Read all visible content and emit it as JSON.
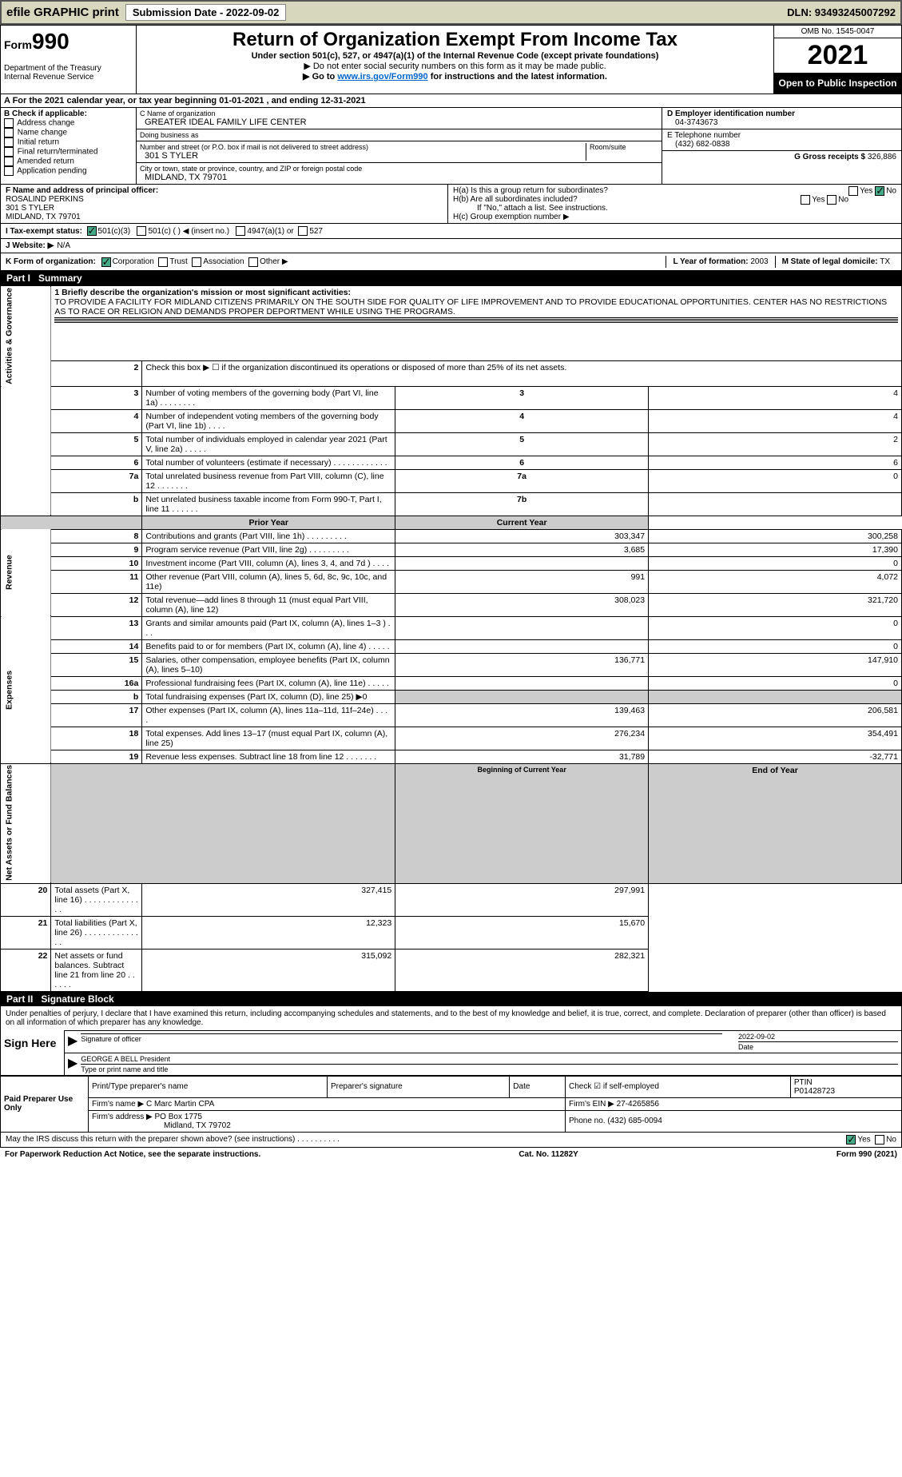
{
  "topbar": {
    "efile": "efile GRAPHIC print",
    "sub_btn": "Submission Date - 2022-09-02",
    "dln": "DLN: 93493245007292"
  },
  "header": {
    "form_small": "Form",
    "form_num": "990",
    "title": "Return of Organization Exempt From Income Tax",
    "subtitle": "Under section 501(c), 527, or 4947(a)(1) of the Internal Revenue Code (except private foundations)",
    "note1": "▶ Do not enter social security numbers on this form as it may be made public.",
    "goto_pre": "▶ Go to ",
    "goto_link": "www.irs.gov/Form990",
    "goto_post": " for instructions and the latest information.",
    "dept": "Department of the Treasury\nInternal Revenue Service",
    "omb": "OMB No. 1545-0047",
    "year": "2021",
    "open": "Open to Public Inspection"
  },
  "row_a": "A For the 2021 calendar year, or tax year beginning 01-01-2021    , and ending 12-31-2021",
  "sec_b": {
    "title": "B Check if applicable:",
    "opts": [
      "Address change",
      "Name change",
      "Initial return",
      "Final return/terminated",
      "Amended return",
      "Application pending"
    ]
  },
  "sec_c": {
    "name_lbl": "C Name of organization",
    "name": "GREATER IDEAL FAMILY LIFE CENTER",
    "dba_lbl": "Doing business as",
    "dba": "",
    "addr_lbl": "Number and street (or P.O. box if mail is not delivered to street address)",
    "room_lbl": "Room/suite",
    "addr": "301 S TYLER",
    "city_lbl": "City or town, state or province, country, and ZIP or foreign postal code",
    "city": "MIDLAND, TX  79701"
  },
  "sec_d": {
    "lbl": "D Employer identification number",
    "val": "04-3743673"
  },
  "sec_e": {
    "lbl": "E Telephone number",
    "val": "(432) 682-0838"
  },
  "sec_g": {
    "lbl": "G Gross receipts $",
    "val": "326,886"
  },
  "sec_f": {
    "lbl": "F Name and address of principal officer:",
    "name": "ROSALIND PERKINS",
    "addr1": "301 S TYLER",
    "addr2": "MIDLAND, TX  79701"
  },
  "sec_h": {
    "ha": "H(a)  Is this a group return for subordinates?",
    "hb": "H(b)  Are all subordinates included?",
    "hb_note": "If \"No,\" attach a list. See instructions.",
    "hc": "H(c)  Group exemption number ▶",
    "yes": "Yes",
    "no": "No"
  },
  "sec_i": {
    "lbl": "I  Tax-exempt status:",
    "o1": "501(c)(3)",
    "o2": "501(c) (  ) ◀ (insert no.)",
    "o3": "4947(a)(1) or",
    "o4": "527"
  },
  "sec_j": {
    "lbl": "J  Website: ▶",
    "val": "N/A"
  },
  "sec_k": {
    "lbl": "K Form of organization:",
    "o1": "Corporation",
    "o2": "Trust",
    "o3": "Association",
    "o4": "Other ▶"
  },
  "sec_l": {
    "lbl": "L Year of formation:",
    "val": "2003"
  },
  "sec_m": {
    "lbl": "M State of legal domicile:",
    "val": "TX"
  },
  "part1": {
    "num": "Part I",
    "title": "Summary"
  },
  "p1": {
    "q1": "1  Briefly describe the organization's mission or most significant activities:",
    "q1_ans": "TO PROVIDE A FACILITY FOR MIDLAND CITIZENS PRIMARILY ON THE SOUTH SIDE FOR QUALITY OF LIFE IMPROVEMENT AND TO PROVIDE EDUCATIONAL OPPORTUNITIES. CENTER HAS NO RESTRICTIONS AS TO RACE OR RELIGION AND DEMANDS PROPER DEPORTMENT WHILE USING THE PROGRAMS.",
    "q2": "Check this box ▶ ☐ if the organization discontinued its operations or disposed of more than 25% of its net assets.",
    "rows_gov": [
      {
        "n": "3",
        "d": "Number of voting members of the governing body (Part VI, line 1a)   .    .    .    .    .    .    .    .",
        "k": "3",
        "v": "4"
      },
      {
        "n": "4",
        "d": "Number of independent voting members of the governing body (Part VI, line 1b)   .    .    .    .",
        "k": "4",
        "v": "4"
      },
      {
        "n": "5",
        "d": "Total number of individuals employed in calendar year 2021 (Part V, line 2a)   .    .    .    .    .",
        "k": "5",
        "v": "2"
      },
      {
        "n": "6",
        "d": "Total number of volunteers (estimate if necessary)   .    .    .    .    .    .    .    .    .    .    .    .",
        "k": "6",
        "v": "6"
      },
      {
        "n": "7a",
        "d": "Total unrelated business revenue from Part VIII, column (C), line 12   .    .    .    .    .    .    .",
        "k": "7a",
        "v": "0"
      },
      {
        "n": "b",
        "d": "Net unrelated business taxable income from Form 990-T, Part I, line 11   .    .    .    .    .    .",
        "k": "7b",
        "v": ""
      }
    ],
    "hdr_prior": "Prior Year",
    "hdr_curr": "Current Year",
    "rows_rev": [
      {
        "n": "8",
        "d": "Contributions and grants (Part VIII, line 1h)   .    .    .    .    .    .    .    .    .",
        "p": "303,347",
        "c": "300,258"
      },
      {
        "n": "9",
        "d": "Program service revenue (Part VIII, line 2g)   .    .    .    .    .    .    .    .    .",
        "p": "3,685",
        "c": "17,390"
      },
      {
        "n": "10",
        "d": "Investment income (Part VIII, column (A), lines 3, 4, and 7d )   .    .    .    .",
        "p": "",
        "c": "0"
      },
      {
        "n": "11",
        "d": "Other revenue (Part VIII, column (A), lines 5, 6d, 8c, 9c, 10c, and 11e)",
        "p": "991",
        "c": "4,072"
      },
      {
        "n": "12",
        "d": "Total revenue—add lines 8 through 11 (must equal Part VIII, column (A), line 12)",
        "p": "308,023",
        "c": "321,720"
      }
    ],
    "rows_exp": [
      {
        "n": "13",
        "d": "Grants and similar amounts paid (Part IX, column (A), lines 1–3 )   .    .    .",
        "p": "",
        "c": "0"
      },
      {
        "n": "14",
        "d": "Benefits paid to or for members (Part IX, column (A), line 4)   .    .    .    .    .",
        "p": "",
        "c": "0"
      },
      {
        "n": "15",
        "d": "Salaries, other compensation, employee benefits (Part IX, column (A), lines 5–10)",
        "p": "136,771",
        "c": "147,910"
      },
      {
        "n": "16a",
        "d": "Professional fundraising fees (Part IX, column (A), line 11e)   .    .    .    .    .",
        "p": "",
        "c": "0"
      },
      {
        "n": "b",
        "d": "Total fundraising expenses (Part IX, column (D), line 25) ▶0",
        "p": "__shade__",
        "c": "__shade__"
      },
      {
        "n": "17",
        "d": "Other expenses (Part IX, column (A), lines 11a–11d, 11f–24e)   .    .    .    .",
        "p": "139,463",
        "c": "206,581"
      },
      {
        "n": "18",
        "d": "Total expenses. Add lines 13–17 (must equal Part IX, column (A), line 25)",
        "p": "276,234",
        "c": "354,491"
      },
      {
        "n": "19",
        "d": "Revenue less expenses. Subtract line 18 from line 12   .    .    .    .    .    .    .",
        "p": "31,789",
        "c": "-32,771"
      }
    ],
    "hdr_beg": "Beginning of Current Year",
    "hdr_end": "End of Year",
    "rows_net": [
      {
        "n": "20",
        "d": "Total assets (Part X, line 16)   .    .    .    .    .    .    .    .    .    .    .    .    .    .",
        "p": "327,415",
        "c": "297,991"
      },
      {
        "n": "21",
        "d": "Total liabilities (Part X, line 26)   .    .    .    .    .    .    .    .    .    .    .    .    .    .",
        "p": "12,323",
        "c": "15,670"
      },
      {
        "n": "22",
        "d": "Net assets or fund balances. Subtract line 21 from line 20   .    .    .    .    .    .",
        "p": "315,092",
        "c": "282,321"
      }
    ],
    "vlabels": {
      "gov": "Activities & Governance",
      "rev": "Revenue",
      "exp": "Expenses",
      "net": "Net Assets or Fund Balances"
    }
  },
  "part2": {
    "num": "Part II",
    "title": "Signature Block"
  },
  "sig": {
    "decl": "Under penalties of perjury, I declare that I have examined this return, including accompanying schedules and statements, and to the best of my knowledge and belief, it is true, correct, and complete. Declaration of preparer (other than officer) is based on all information of which preparer has any knowledge.",
    "sign_here": "Sign Here",
    "sig_officer": "Signature of officer",
    "date": "Date",
    "date_val": "2022-09-02",
    "name_title": "GEORGE A BELL President",
    "name_title_lbl": "Type or print name and title"
  },
  "paid": {
    "lbl": "Paid Preparer Use Only",
    "h1": "Print/Type preparer's name",
    "h2": "Preparer's signature",
    "h3": "Date",
    "h4": "Check ☑ if self-employed",
    "h5_lbl": "PTIN",
    "h5": "P01428723",
    "firm_lbl": "Firm's name    ▶",
    "firm": "C Marc Martin CPA",
    "ein_lbl": "Firm's EIN ▶",
    "ein": "27-4265856",
    "addr_lbl": "Firm's address ▶",
    "addr1": "PO Box 1775",
    "addr2": "Midland, TX  79702",
    "phone_lbl": "Phone no.",
    "phone": "(432) 685-0094"
  },
  "footer": {
    "may": "May the IRS discuss this return with the preparer shown above? (see instructions)   .    .    .    .    .    .    .    .    .    .",
    "yes": "Yes",
    "no": "No",
    "pra": "For Paperwork Reduction Act Notice, see the separate instructions.",
    "cat": "Cat. No. 11282Y",
    "form": "Form 990 (2021)"
  }
}
